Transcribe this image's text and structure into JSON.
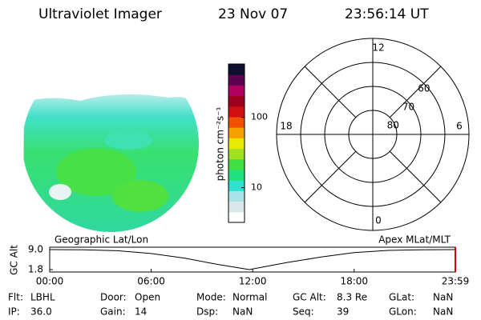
{
  "header": {
    "title": "Ultraviolet Imager",
    "date": "23 Nov 07",
    "time": "23:56:14 UT"
  },
  "colorbar": {
    "label": "photon cm⁻²s⁻¹",
    "log_scale": true,
    "lim": [
      3.2,
      575
    ],
    "ticks": [
      10,
      100
    ],
    "colors": [
      "#ffffff",
      "#d8e8e8",
      "#a8e4ea",
      "#30e0d0",
      "#20e080",
      "#40e040",
      "#a0e020",
      "#e8e800",
      "#f8a000",
      "#f05000",
      "#d01010",
      "#a00020",
      "#b00060",
      "#600050",
      "#101030"
    ]
  },
  "polar": {
    "rlim": [
      90,
      50
    ],
    "rings": [
      80,
      70,
      60
    ],
    "mlt_labels": [
      "12",
      "18",
      "6",
      "0"
    ],
    "mlt_hours": [
      12,
      18,
      6,
      0
    ]
  },
  "altitude_plot": {
    "type": "line",
    "left_label": "Geographic Lat/Lon",
    "right_label": "Apex MLat/MLT",
    "ylabel": "GC Alt",
    "x": [
      0,
      2,
      4,
      6,
      8,
      10,
      11.8,
      14,
      16,
      18,
      20,
      22,
      23.98
    ],
    "values": [
      9.0,
      8.9,
      8.6,
      7.6,
      5.9,
      3.6,
      1.8,
      4.3,
      6.3,
      7.9,
      8.7,
      8.95,
      9.0
    ],
    "color": "#000000",
    "xlim": [
      0,
      23.983
    ],
    "xticks": [
      {
        "value": 0,
        "label": "00:00"
      },
      {
        "value": 6,
        "label": "06:00"
      },
      {
        "value": 12,
        "label": "12:00"
      },
      {
        "value": 18,
        "label": "18:00"
      },
      {
        "value": 23.983,
        "label": "23:59"
      }
    ],
    "ylim": [
      1.8,
      9.0
    ],
    "yticks": [
      {
        "value": 9.0,
        "label": "9.0"
      },
      1.8
    ]
  },
  "status": {
    "rows": [
      [
        {
          "label": "Flt:",
          "value": "LBHL"
        },
        {
          "label": "Door:",
          "value": "Open"
        },
        {
          "label": "Mode:",
          "value": "Normal"
        },
        {
          "label": "GC Alt:",
          "value": "8.3 Re"
        },
        {
          "label": "GLat:",
          "value": "NaN"
        }
      ],
      [
        {
          "label": "IP:",
          "value": "36.0"
        },
        {
          "label": "Gain:",
          "value": "14"
        },
        {
          "label": "Dsp:",
          "value": "NaN"
        },
        {
          "label": "Seq:",
          "value": "39"
        },
        {
          "label": "GLon:",
          "value": "NaN"
        }
      ]
    ]
  }
}
